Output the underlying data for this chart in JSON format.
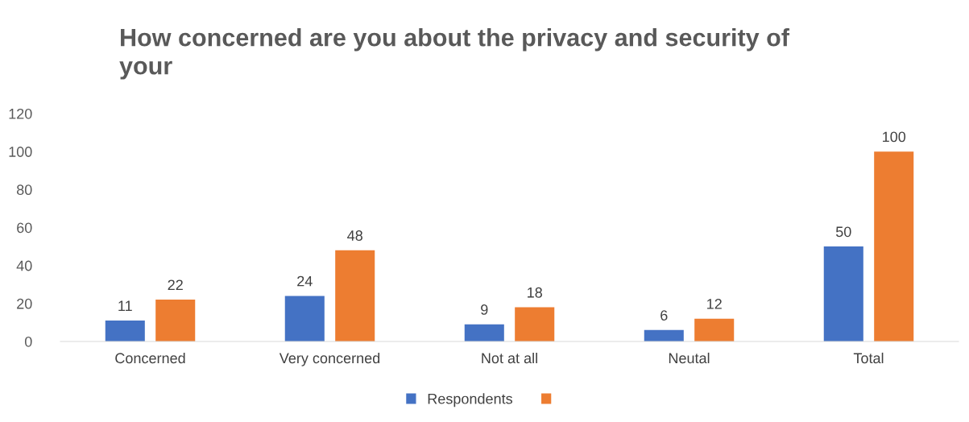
{
  "chart_data": {
    "type": "bar",
    "title": "How concerned are you about the privacy and security of\nyour",
    "categories": [
      "Concerned",
      "Very concerned",
      "Not at all",
      "Neutal",
      "Total"
    ],
    "series": [
      {
        "name": "Respondents",
        "color": "#4472c4",
        "values": [
          11,
          24,
          9,
          6,
          50
        ]
      },
      {
        "color": "#ed7d31",
        "values": [
          22,
          48,
          18,
          12,
          100
        ]
      }
    ],
    "ylim": [
      0,
      120
    ],
    "yticks": [
      0,
      20,
      40,
      60,
      80,
      100,
      120
    ],
    "data_labels": true,
    "legend": "bottom",
    "grid": false
  }
}
